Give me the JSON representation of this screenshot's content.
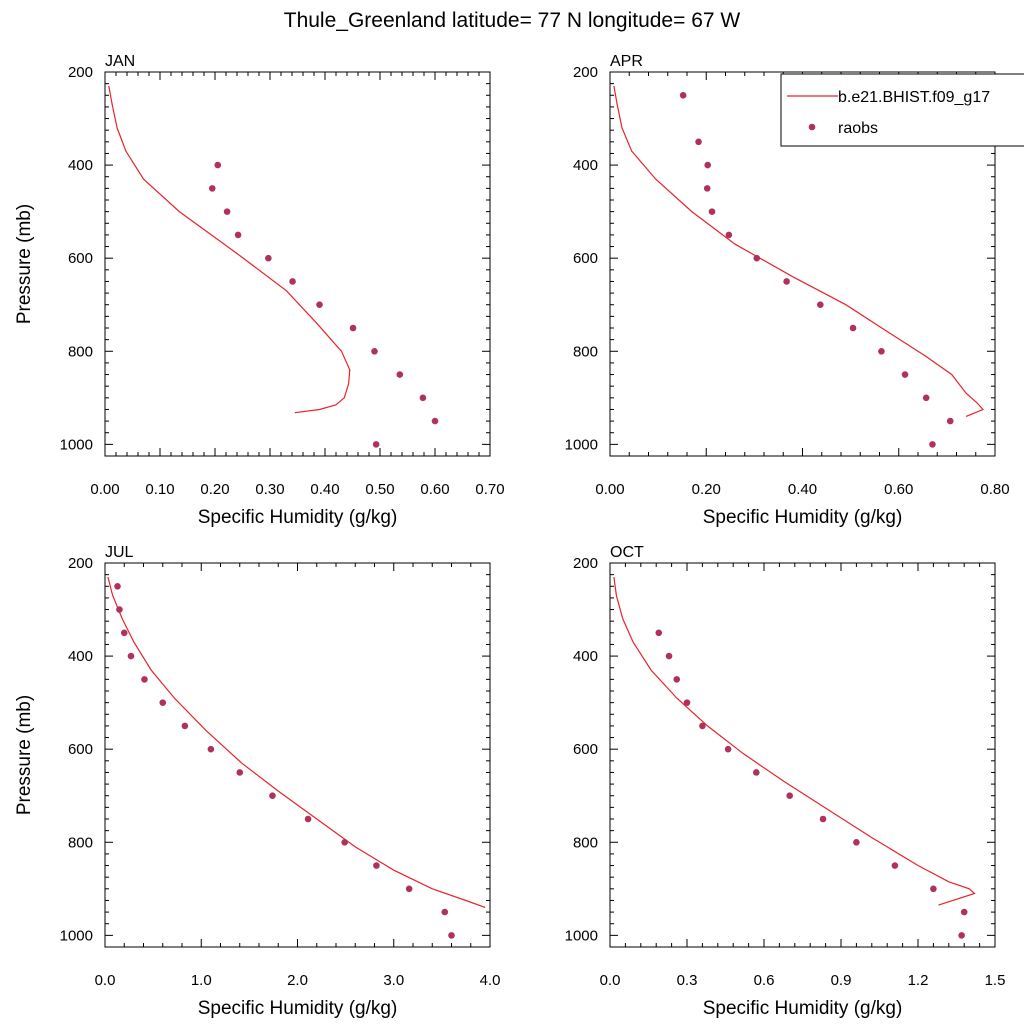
{
  "title": "Thule_Greenland  latitude= 77 N longitude= 67 W",
  "legend": {
    "placement": "top-right",
    "model_label": "b.e21.BHIST.f09_g17",
    "obs_label": "raobs"
  },
  "colors": {
    "model": "#e8232a",
    "obs": "#b0325a"
  },
  "chart_data": [
    {
      "type": "line",
      "panel": "JAN",
      "xlabel": "Specific Humidity (g/kg)",
      "ylabel": "Pressure (mb)",
      "xlim": [
        0,
        0.7
      ],
      "ylim": [
        200,
        1025
      ],
      "y_inverted": true,
      "xticks": [
        "0.00",
        "0.10",
        "0.20",
        "0.30",
        "0.40",
        "0.50",
        "0.60",
        "0.70"
      ],
      "xtick_values": [
        0,
        0.1,
        0.2,
        0.3,
        0.4,
        0.5,
        0.6,
        0.7
      ],
      "yticks": [
        200,
        400,
        600,
        800,
        1000
      ],
      "series": [
        {
          "name": "b.e21.BHIST.f09_g17",
          "kind": "line",
          "x": [
            0.007,
            0.013,
            0.022,
            0.038,
            0.07,
            0.135,
            0.24,
            0.33,
            0.385,
            0.43,
            0.445,
            0.443,
            0.435,
            0.42,
            0.39,
            0.345
          ],
          "y": [
            230,
            270,
            320,
            370,
            430,
            500,
            590,
            670,
            740,
            800,
            840,
            870,
            900,
            915,
            925,
            932
          ]
        },
        {
          "name": "raobs",
          "kind": "scatter",
          "x": [
            0.205,
            0.195,
            0.222,
            0.242,
            0.297,
            0.341,
            0.39,
            0.451,
            0.49,
            0.536,
            0.578,
            0.6,
            0.493
          ],
          "y": [
            400,
            450,
            500,
            550,
            600,
            650,
            700,
            750,
            800,
            850,
            900,
            950,
            1000
          ]
        }
      ]
    },
    {
      "type": "line",
      "panel": "APR",
      "xlabel": "Specific Humidity (g/kg)",
      "ylabel": "",
      "xlim": [
        0,
        0.8
      ],
      "ylim": [
        200,
        1025
      ],
      "y_inverted": true,
      "xticks": [
        "0.00",
        "0.20",
        "0.40",
        "0.60",
        "0.80"
      ],
      "xtick_values": [
        0,
        0.2,
        0.4,
        0.6,
        0.8
      ],
      "yticks": [
        200,
        400,
        600,
        800,
        1000
      ],
      "series": [
        {
          "name": "b.e21.BHIST.f09_g17",
          "kind": "line",
          "x": [
            0.008,
            0.015,
            0.025,
            0.045,
            0.095,
            0.17,
            0.26,
            0.38,
            0.49,
            0.58,
            0.655,
            0.71,
            0.74,
            0.762,
            0.775,
            0.74
          ],
          "y": [
            230,
            270,
            320,
            370,
            430,
            500,
            570,
            640,
            700,
            760,
            810,
            850,
            890,
            910,
            925,
            940
          ]
        },
        {
          "name": "raobs",
          "kind": "scatter",
          "x": [
            0.152,
            0.184,
            0.203,
            0.202,
            0.212,
            0.247,
            0.305,
            0.367,
            0.437,
            0.505,
            0.564,
            0.613,
            0.657,
            0.707,
            0.67
          ],
          "y": [
            250,
            350,
            400,
            450,
            500,
            550,
            600,
            650,
            700,
            750,
            800,
            850,
            900,
            950,
            1000
          ]
        }
      ]
    },
    {
      "type": "line",
      "panel": "JUL",
      "xlabel": "Specific Humidity (g/kg)",
      "ylabel": "Pressure (mb)",
      "xlim": [
        0,
        4.0
      ],
      "ylim": [
        200,
        1025
      ],
      "y_inverted": true,
      "xticks": [
        "0.0",
        "1.0",
        "2.0",
        "3.0",
        "4.0"
      ],
      "xtick_values": [
        0,
        1,
        2,
        3,
        4
      ],
      "yticks": [
        200,
        400,
        600,
        800,
        1000
      ],
      "series": [
        {
          "name": "b.e21.BHIST.f09_g17",
          "kind": "line",
          "x": [
            0.03,
            0.08,
            0.18,
            0.3,
            0.48,
            0.72,
            1.05,
            1.42,
            1.8,
            2.2,
            2.6,
            3.0,
            3.4,
            3.75,
            3.95
          ],
          "y": [
            230,
            270,
            320,
            370,
            430,
            490,
            560,
            630,
            690,
            750,
            810,
            860,
            900,
            925,
            940
          ]
        },
        {
          "name": "raobs",
          "kind": "scatter",
          "x": [
            0.13,
            0.15,
            0.2,
            0.27,
            0.41,
            0.6,
            0.83,
            1.1,
            1.4,
            1.74,
            2.11,
            2.49,
            2.82,
            3.16,
            3.53,
            3.6
          ],
          "y": [
            250,
            300,
            350,
            400,
            450,
            500,
            550,
            600,
            650,
            700,
            750,
            800,
            850,
            900,
            950,
            1000
          ]
        }
      ]
    },
    {
      "type": "line",
      "panel": "OCT",
      "xlabel": "Specific Humidity (g/kg)",
      "ylabel": "",
      "xlim": [
        0,
        1.5
      ],
      "ylim": [
        200,
        1025
      ],
      "y_inverted": true,
      "xticks": [
        "0.0",
        "0.3",
        "0.6",
        "0.9",
        "1.2",
        "1.5"
      ],
      "xtick_values": [
        0,
        0.3,
        0.6,
        0.9,
        1.2,
        1.5
      ],
      "yticks": [
        200,
        400,
        600,
        800,
        1000
      ],
      "series": [
        {
          "name": "b.e21.BHIST.f09_g17",
          "kind": "line",
          "x": [
            0.015,
            0.025,
            0.05,
            0.09,
            0.16,
            0.26,
            0.38,
            0.52,
            0.68,
            0.85,
            1.02,
            1.2,
            1.32,
            1.4,
            1.42,
            1.28
          ],
          "y": [
            230,
            270,
            320,
            370,
            430,
            490,
            550,
            610,
            670,
            730,
            790,
            850,
            885,
            900,
            910,
            935
          ]
        },
        {
          "name": "raobs",
          "kind": "scatter",
          "x": [
            0.19,
            0.23,
            0.26,
            0.3,
            0.36,
            0.46,
            0.57,
            0.7,
            0.83,
            0.96,
            1.11,
            1.26,
            1.38,
            1.37
          ],
          "y": [
            350,
            400,
            450,
            500,
            550,
            600,
            650,
            700,
            750,
            800,
            850,
            900,
            950,
            1000
          ]
        }
      ]
    }
  ]
}
